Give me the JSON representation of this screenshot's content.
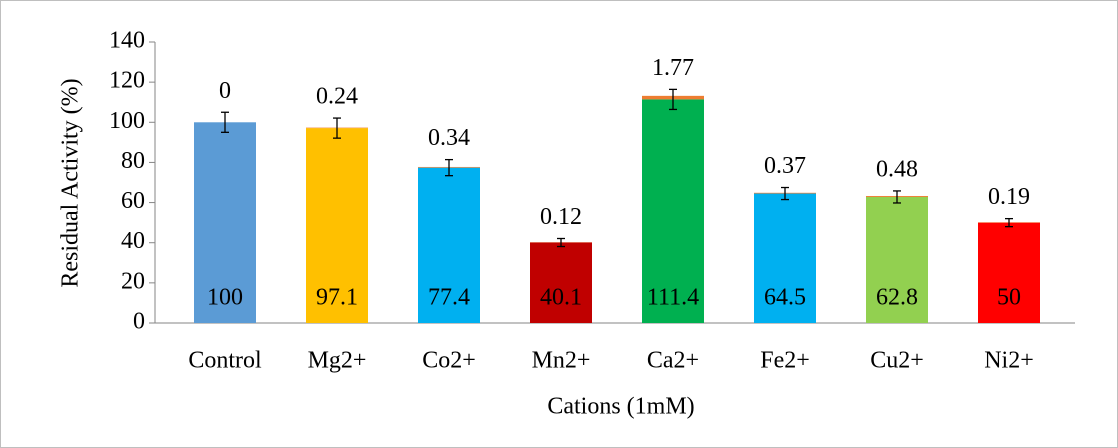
{
  "chart_data": {
    "type": "stacked_bar",
    "y_label": "Residual Activity (%)",
    "x_label": "Cations  (1mM)",
    "categories": [
      "Control",
      "Mg2+",
      "Co2+",
      "Mn2+",
      "Ca2+",
      "Fe2+",
      "Cu2+",
      "Ni2+"
    ],
    "series": [
      {
        "colors": [
          "#5b9bd5",
          "#ffc000",
          "#00b0f0",
          "#c00000",
          "#00b050",
          "#00b0f0",
          "#92d050",
          "#ff0000"
        ],
        "values": [
          100,
          97.1,
          77.4,
          40.1,
          111.4,
          64.5,
          62.8,
          50
        ],
        "errors": [
          5,
          5,
          4,
          2,
          5,
          3,
          3,
          2
        ]
      },
      {
        "color": "#ed7d31",
        "values": [
          0,
          0.24,
          0.34,
          0.12,
          1.77,
          0.37,
          0.48,
          0.19
        ]
      }
    ],
    "ylim": [
      0,
      140
    ],
    "yticks": [
      0,
      20,
      40,
      60,
      80,
      100,
      120,
      140
    ]
  }
}
